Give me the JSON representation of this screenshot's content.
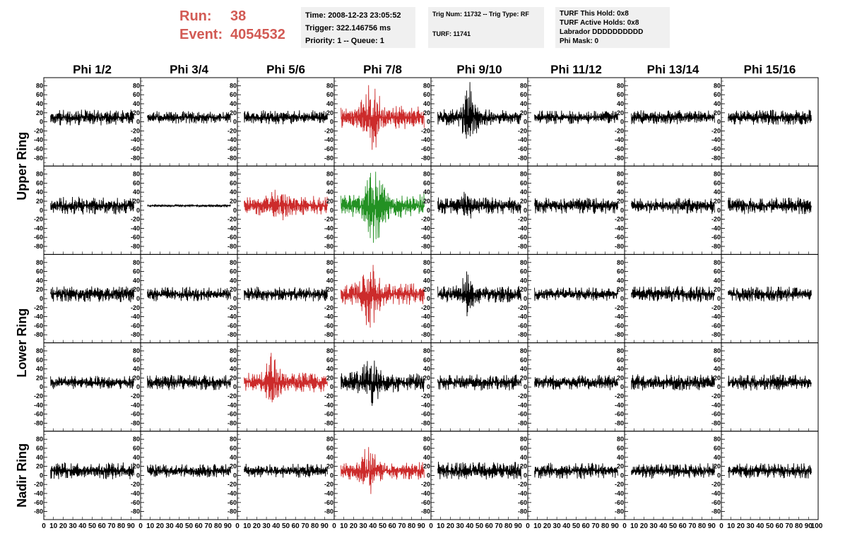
{
  "header": {
    "run_label": "Run:",
    "run_value": "38",
    "event_label": "Event:",
    "event_value": "4054532",
    "time": "Time: 2008-12-23 23:05:52",
    "trigger": "Trigger: 322.146756 ms",
    "priority": "Priority: 1 -- Queue: 1",
    "trig_num": "Trig Num: 11732 -- Trig Type: RF",
    "turf": "TURF: 11741",
    "turf_this_hold": "TURF This Hold: 0x8",
    "turf_active_holds": "TURF Active Holds: 0x8",
    "labrador": "Labrador DDDDDDDDDD",
    "phi_mask": "Phi Mask: 0"
  },
  "chart_data": {
    "type": "line",
    "columns": [
      "Phi 1/2",
      "Phi 3/4",
      "Phi 5/6",
      "Phi 7/8",
      "Phi 9/10",
      "Phi 11/12",
      "Phi 13/14",
      "Phi 15/16"
    ],
    "rows": [
      {
        "label": "Upper Ring",
        "rows": 2
      },
      {
        "label": "Lower Ring",
        "rows": 2
      },
      {
        "label": "Nadir Ring",
        "rows": 1
      }
    ],
    "ylim": [
      -90,
      90
    ],
    "xlim": [
      0,
      100
    ],
    "yticks": [
      80,
      60,
      40,
      20,
      0,
      -20,
      -40,
      -60,
      -80
    ],
    "xticks": [
      0,
      10,
      20,
      30,
      40,
      50,
      60,
      70,
      80,
      90
    ],
    "colors": {
      "normal": "#000000",
      "triggered": "#cc2b2b",
      "highlight": "#239123"
    },
    "panels": [
      [
        {
          "s": "normal",
          "a": 18,
          "p": 0,
          "w": 0
        },
        {
          "s": "normal",
          "a": 14,
          "p": 0,
          "w": 0
        },
        {
          "s": "normal",
          "a": 16,
          "p": 0,
          "w": 0
        },
        {
          "s": "triggered",
          "a": 26,
          "p": 85,
          "w": 4
        },
        {
          "s": "normal",
          "a": 18,
          "p": 82,
          "w": 3
        },
        {
          "s": "normal",
          "a": 15,
          "p": 0,
          "w": 0
        },
        {
          "s": "normal",
          "a": 16,
          "p": 0,
          "w": 0
        },
        {
          "s": "normal",
          "a": 17,
          "p": 0,
          "w": 0
        }
      ],
      [
        {
          "s": "normal",
          "a": 20,
          "p": 0,
          "w": 0
        },
        {
          "s": "normal",
          "a": 3,
          "p": 0,
          "w": 0
        },
        {
          "s": "triggered",
          "a": 22,
          "p": 48,
          "w": 3
        },
        {
          "s": "highlight",
          "a": 28,
          "p": 88,
          "w": 4
        },
        {
          "s": "normal",
          "a": 19,
          "p": 45,
          "w": 3
        },
        {
          "s": "normal",
          "a": 18,
          "p": 0,
          "w": 0
        },
        {
          "s": "normal",
          "a": 18,
          "p": 0,
          "w": 0
        },
        {
          "s": "normal",
          "a": 19,
          "p": 0,
          "w": 0
        }
      ],
      [
        {
          "s": "normal",
          "a": 18,
          "p": 0,
          "w": 0
        },
        {
          "s": "normal",
          "a": 16,
          "p": 0,
          "w": 0
        },
        {
          "s": "normal",
          "a": 17,
          "p": 0,
          "w": 0
        },
        {
          "s": "triggered",
          "a": 24,
          "p": 80,
          "w": 4
        },
        {
          "s": "normal",
          "a": 19,
          "p": 60,
          "w": 3
        },
        {
          "s": "normal",
          "a": 15,
          "p": 0,
          "w": 0
        },
        {
          "s": "normal",
          "a": 18,
          "p": 0,
          "w": 0
        },
        {
          "s": "normal",
          "a": 17,
          "p": 0,
          "w": 0
        }
      ],
      [
        {
          "s": "normal",
          "a": 15,
          "p": 0,
          "w": 0
        },
        {
          "s": "normal",
          "a": 17,
          "p": 0,
          "w": 0
        },
        {
          "s": "triggered",
          "a": 22,
          "p": 68,
          "w": 3
        },
        {
          "s": "normal",
          "a": 22,
          "p": 55,
          "w": 5
        },
        {
          "s": "normal",
          "a": 18,
          "p": 0,
          "w": 0
        },
        {
          "s": "normal",
          "a": 17,
          "p": 0,
          "w": 0
        },
        {
          "s": "normal",
          "a": 18,
          "p": 0,
          "w": 0
        },
        {
          "s": "normal",
          "a": 18,
          "p": 0,
          "w": 0
        }
      ],
      [
        {
          "s": "normal",
          "a": 19,
          "p": 0,
          "w": 0
        },
        {
          "s": "normal",
          "a": 15,
          "p": 0,
          "w": 0
        },
        {
          "s": "normal",
          "a": 16,
          "p": 0,
          "w": 0
        },
        {
          "s": "triggered",
          "a": 20,
          "p": 58,
          "w": 4
        },
        {
          "s": "normal",
          "a": 20,
          "p": 0,
          "w": 0
        },
        {
          "s": "normal",
          "a": 18,
          "p": 0,
          "w": 0
        },
        {
          "s": "normal",
          "a": 18,
          "p": 0,
          "w": 0
        },
        {
          "s": "normal",
          "a": 17,
          "p": 0,
          "w": 0
        }
      ]
    ]
  }
}
